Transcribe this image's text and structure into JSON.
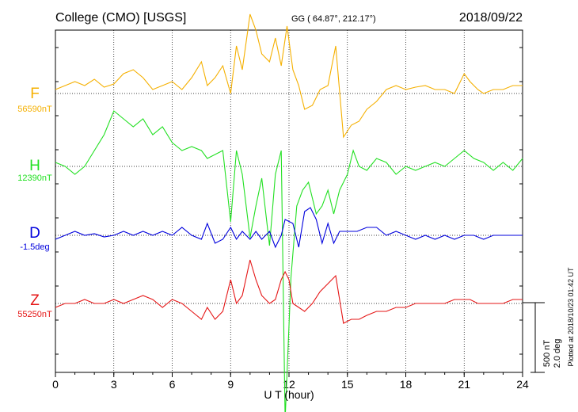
{
  "header": {
    "station": "College (CMO)  [USGS]",
    "coords": "GG ( 64.87°, 212.17°)",
    "date": "2018/09/22"
  },
  "footer": {
    "plotted": "Plotted at 2018/10/23 01:42 UT"
  },
  "chart_data": {
    "type": "line",
    "xlabel": "U T (hour)",
    "xlim": [
      0,
      24
    ],
    "xticks": [
      "0",
      "3",
      "6",
      "9",
      "12",
      "15",
      "18",
      "21",
      "24"
    ],
    "grid": true,
    "scale": {
      "nT": "500 nT",
      "deg": "2.0 deg"
    },
    "series": [
      {
        "name": "F",
        "baseline": "56590nT",
        "color": "#f5b000",
        "offset": 0,
        "points": [
          [
            0,
            -5
          ],
          [
            0.5,
            -10
          ],
          [
            1,
            -15
          ],
          [
            1.5,
            -10
          ],
          [
            2,
            -18
          ],
          [
            2.5,
            -8
          ],
          [
            3,
            -12
          ],
          [
            3.5,
            -25
          ],
          [
            4,
            -30
          ],
          [
            4.5,
            -20
          ],
          [
            5,
            -5
          ],
          [
            5.5,
            -10
          ],
          [
            6,
            -15
          ],
          [
            6.5,
            -5
          ],
          [
            7,
            -20
          ],
          [
            7.5,
            -40
          ],
          [
            7.8,
            -10
          ],
          [
            8.2,
            -20
          ],
          [
            8.6,
            -35
          ],
          [
            9,
            0
          ],
          [
            9.3,
            -60
          ],
          [
            9.6,
            -30
          ],
          [
            10,
            -100
          ],
          [
            10.3,
            -80
          ],
          [
            10.6,
            -50
          ],
          [
            11,
            -40
          ],
          [
            11.3,
            -70
          ],
          [
            11.6,
            -35
          ],
          [
            11.9,
            -85
          ],
          [
            12.2,
            -30
          ],
          [
            12.5,
            -10
          ],
          [
            12.8,
            20
          ],
          [
            13.2,
            15
          ],
          [
            13.6,
            -5
          ],
          [
            14,
            -10
          ],
          [
            14.4,
            -60
          ],
          [
            14.8,
            55
          ],
          [
            15.2,
            40
          ],
          [
            15.6,
            35
          ],
          [
            16,
            20
          ],
          [
            16.5,
            10
          ],
          [
            17,
            -5
          ],
          [
            17.5,
            -10
          ],
          [
            18,
            -5
          ],
          [
            18.5,
            -8
          ],
          [
            19,
            -10
          ],
          [
            19.5,
            -5
          ],
          [
            20,
            -5
          ],
          [
            20.5,
            0
          ],
          [
            21,
            -25
          ],
          [
            21.3,
            -15
          ],
          [
            21.7,
            -5
          ],
          [
            22,
            0
          ],
          [
            22.5,
            -5
          ],
          [
            23,
            -5
          ],
          [
            23.5,
            -10
          ],
          [
            24,
            -10
          ]
        ]
      },
      {
        "name": "H",
        "baseline": "12390nT",
        "color": "#22e022",
        "offset": 0,
        "points": [
          [
            0,
            -5
          ],
          [
            0.5,
            0
          ],
          [
            1,
            10
          ],
          [
            1.5,
            0
          ],
          [
            2,
            -20
          ],
          [
            2.5,
            -40
          ],
          [
            3,
            -70
          ],
          [
            3.5,
            -60
          ],
          [
            4,
            -50
          ],
          [
            4.5,
            -60
          ],
          [
            5,
            -40
          ],
          [
            5.5,
            -50
          ],
          [
            6,
            -30
          ],
          [
            6.5,
            -20
          ],
          [
            7,
            -25
          ],
          [
            7.5,
            -20
          ],
          [
            7.8,
            -10
          ],
          [
            8.2,
            -15
          ],
          [
            8.6,
            -20
          ],
          [
            9,
            70
          ],
          [
            9.3,
            -20
          ],
          [
            9.6,
            10
          ],
          [
            10,
            90
          ],
          [
            10.3,
            50
          ],
          [
            10.6,
            15
          ],
          [
            11,
            100
          ],
          [
            11.3,
            10
          ],
          [
            11.6,
            -20
          ],
          [
            11.8,
            320
          ],
          [
            12.1,
            140
          ],
          [
            12.4,
            50
          ],
          [
            12.7,
            30
          ],
          [
            13,
            20
          ],
          [
            13.4,
            60
          ],
          [
            13.7,
            50
          ],
          [
            14,
            30
          ],
          [
            14.3,
            60
          ],
          [
            14.6,
            30
          ],
          [
            15,
            10
          ],
          [
            15.3,
            -20
          ],
          [
            15.6,
            0
          ],
          [
            16,
            5
          ],
          [
            16.5,
            -10
          ],
          [
            17,
            -5
          ],
          [
            17.5,
            10
          ],
          [
            18,
            0
          ],
          [
            18.5,
            5
          ],
          [
            19,
            0
          ],
          [
            19.5,
            -5
          ],
          [
            20,
            0
          ],
          [
            20.5,
            -10
          ],
          [
            21,
            -20
          ],
          [
            21.5,
            -10
          ],
          [
            22,
            -5
          ],
          [
            22.5,
            5
          ],
          [
            23,
            -5
          ],
          [
            23.5,
            5
          ],
          [
            24,
            -10
          ]
        ]
      },
      {
        "name": "D",
        "baseline": "-1.5deg",
        "color": "#0000dd",
        "offset": 0,
        "points": [
          [
            0,
            5
          ],
          [
            0.5,
            0
          ],
          [
            1,
            -5
          ],
          [
            1.5,
            0
          ],
          [
            2,
            -2
          ],
          [
            2.5,
            2
          ],
          [
            3,
            0
          ],
          [
            3.5,
            -5
          ],
          [
            4,
            0
          ],
          [
            4.5,
            -5
          ],
          [
            5,
            0
          ],
          [
            5.5,
            -5
          ],
          [
            6,
            0
          ],
          [
            6.5,
            -10
          ],
          [
            7,
            0
          ],
          [
            7.5,
            5
          ],
          [
            7.8,
            -15
          ],
          [
            8.2,
            10
          ],
          [
            8.6,
            5
          ],
          [
            9,
            -10
          ],
          [
            9.3,
            5
          ],
          [
            9.6,
            -5
          ],
          [
            10,
            5
          ],
          [
            10.3,
            -5
          ],
          [
            10.6,
            5
          ],
          [
            11,
            -5
          ],
          [
            11.3,
            15
          ],
          [
            11.6,
            0
          ],
          [
            11.8,
            -20
          ],
          [
            12.2,
            -15
          ],
          [
            12.5,
            15
          ],
          [
            12.8,
            -30
          ],
          [
            13.1,
            -35
          ],
          [
            13.4,
            -20
          ],
          [
            13.7,
            10
          ],
          [
            14,
            -15
          ],
          [
            14.3,
            10
          ],
          [
            14.6,
            -5
          ],
          [
            15,
            -5
          ],
          [
            15.5,
            -5
          ],
          [
            16,
            -10
          ],
          [
            16.5,
            -10
          ],
          [
            17,
            0
          ],
          [
            17.5,
            -5
          ],
          [
            18,
            0
          ],
          [
            18.5,
            5
          ],
          [
            19,
            0
          ],
          [
            19.5,
            5
          ],
          [
            20,
            0
          ],
          [
            20.5,
            5
          ],
          [
            21,
            0
          ],
          [
            21.5,
            0
          ],
          [
            22,
            5
          ],
          [
            22.5,
            0
          ],
          [
            23,
            0
          ],
          [
            23.5,
            0
          ],
          [
            24,
            0
          ]
        ]
      },
      {
        "name": "Z",
        "baseline": "55250nT",
        "color": "#e51616",
        "offset": 0,
        "points": [
          [
            0,
            5
          ],
          [
            0.5,
            0
          ],
          [
            1,
            0
          ],
          [
            1.5,
            -5
          ],
          [
            2,
            0
          ],
          [
            2.5,
            0
          ],
          [
            3,
            -5
          ],
          [
            3.5,
            0
          ],
          [
            4,
            -5
          ],
          [
            4.5,
            -10
          ],
          [
            5,
            -5
          ],
          [
            5.5,
            5
          ],
          [
            6,
            -5
          ],
          [
            6.5,
            0
          ],
          [
            7,
            10
          ],
          [
            7.5,
            20
          ],
          [
            7.8,
            5
          ],
          [
            8.2,
            20
          ],
          [
            8.6,
            10
          ],
          [
            9,
            -30
          ],
          [
            9.3,
            0
          ],
          [
            9.6,
            -10
          ],
          [
            10,
            -55
          ],
          [
            10.3,
            -30
          ],
          [
            10.6,
            -10
          ],
          [
            11,
            0
          ],
          [
            11.3,
            -5
          ],
          [
            11.6,
            -30
          ],
          [
            11.8,
            -40
          ],
          [
            12,
            -30
          ],
          [
            12.2,
            0
          ],
          [
            12.5,
            5
          ],
          [
            12.8,
            10
          ],
          [
            13.2,
            0
          ],
          [
            13.6,
            -15
          ],
          [
            14,
            -25
          ],
          [
            14.4,
            -35
          ],
          [
            14.8,
            25
          ],
          [
            15.2,
            20
          ],
          [
            15.6,
            20
          ],
          [
            16,
            15
          ],
          [
            16.5,
            10
          ],
          [
            17,
            10
          ],
          [
            17.5,
            5
          ],
          [
            18,
            5
          ],
          [
            18.5,
            0
          ],
          [
            19,
            0
          ],
          [
            19.5,
            0
          ],
          [
            20,
            0
          ],
          [
            20.5,
            -5
          ],
          [
            21,
            -5
          ],
          [
            21.3,
            -5
          ],
          [
            21.7,
            0
          ],
          [
            22,
            0
          ],
          [
            22.5,
            0
          ],
          [
            23,
            0
          ],
          [
            23.5,
            -5
          ],
          [
            24,
            -5
          ]
        ]
      }
    ]
  }
}
